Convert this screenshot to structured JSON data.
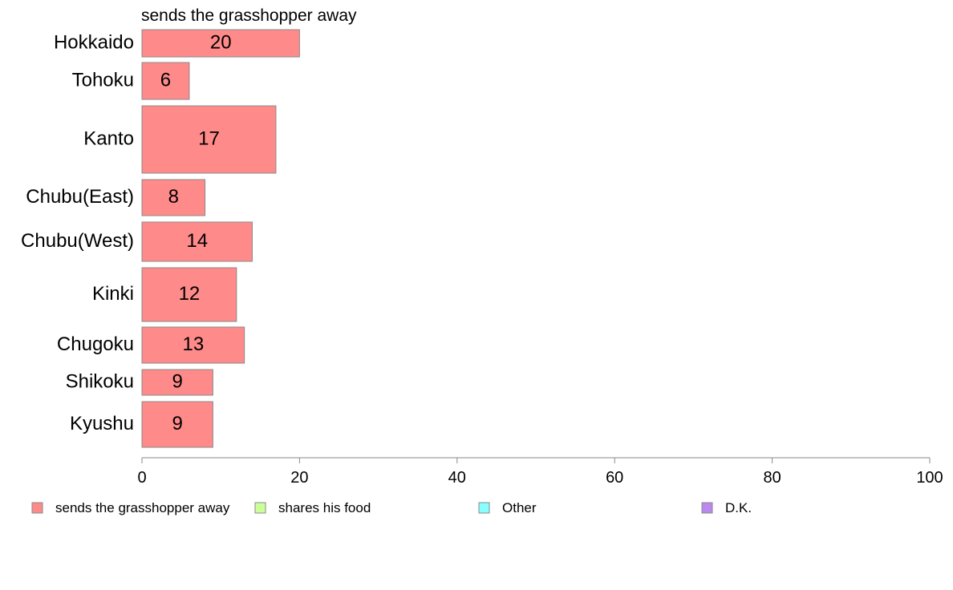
{
  "chart_data": {
    "type": "bar",
    "orientation": "horizontal",
    "title": "sends the grasshopper away",
    "categories": [
      "Hokkaido",
      "Tohoku",
      "Kanto",
      "Chubu(East)",
      "Chubu(West)",
      "Kinki",
      "Chugoku",
      "Shikoku",
      "Kyushu"
    ],
    "series": [
      {
        "name": "sends the grasshopper away",
        "values": [
          20,
          6,
          17,
          8,
          14,
          12,
          13,
          9,
          9
        ]
      }
    ],
    "xlim": [
      0,
      100
    ],
    "xticks": [
      0,
      20,
      40,
      60,
      80,
      100
    ],
    "grid": false,
    "legend_position": "bottom",
    "legend": [
      {
        "name": "sends the grasshopper away",
        "color": "#ff8a8a"
      },
      {
        "name": "shares his food",
        "color": "#ccff99"
      },
      {
        "name": "Other",
        "color": "#88ffff"
      },
      {
        "name": "D.K.",
        "color": "#bb88ee"
      }
    ]
  }
}
